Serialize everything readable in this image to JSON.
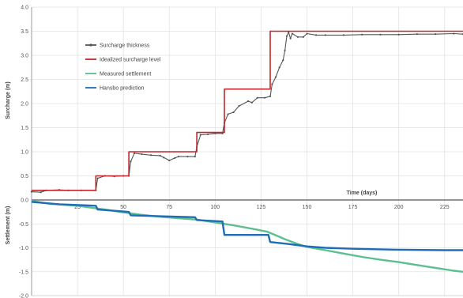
{
  "chart_data": {
    "type": "line",
    "grid": true,
    "legend_position": "top-left",
    "x": {
      "label": "Time (days)",
      "range": [
        0,
        235
      ],
      "ticks": [
        0,
        25,
        50,
        75,
        100,
        125,
        150,
        175,
        200,
        225
      ],
      "tick_labels": [
        "",
        "25",
        "50",
        "75",
        "100",
        "125",
        "150",
        "175",
        "200",
        "225"
      ]
    },
    "surcharge_axis": {
      "label": "Surcharge (m)",
      "range": [
        0,
        4
      ],
      "ticks": [
        0,
        0.5,
        1,
        1.5,
        2,
        2.5,
        3,
        3.5,
        4
      ],
      "tick_labels": [
        "0.0",
        "0.5",
        "1.0",
        "1.5",
        "2.0",
        "2.5",
        "3.0",
        "3.5",
        "4.0"
      ]
    },
    "settlement_axis": {
      "label": "Settlement (m)",
      "range": [
        -2,
        0
      ],
      "ticks": [
        0,
        -0.5,
        -1,
        -1.5,
        -2
      ],
      "tick_labels": [
        "0.0",
        "-0.5",
        "-1.0",
        "-1.5",
        "-2.0"
      ]
    },
    "series": [
      {
        "name": "Surcharge thickness",
        "color": "#555555",
        "axis": "surcharge",
        "marker": "dot",
        "points": [
          [
            0,
            0.17
          ],
          [
            5,
            0.16
          ],
          [
            8,
            0.2
          ],
          [
            15,
            0.21
          ],
          [
            20,
            0.2
          ],
          [
            27,
            0.2
          ],
          [
            35,
            0.2
          ],
          [
            36,
            0.45
          ],
          [
            40,
            0.5
          ],
          [
            45,
            0.49
          ],
          [
            50,
            0.5
          ],
          [
            53,
            0.5
          ],
          [
            54,
            0.8
          ],
          [
            56,
            0.97
          ],
          [
            60,
            0.95
          ],
          [
            65,
            0.93
          ],
          [
            70,
            0.92
          ],
          [
            72,
            0.88
          ],
          [
            75,
            0.82
          ],
          [
            78,
            0.87
          ],
          [
            80,
            0.9
          ],
          [
            85,
            0.9
          ],
          [
            89,
            0.9
          ],
          [
            90,
            1.1
          ],
          [
            92,
            1.35
          ],
          [
            96,
            1.36
          ],
          [
            100,
            1.38
          ],
          [
            104,
            1.38
          ],
          [
            105,
            1.6
          ],
          [
            107,
            1.78
          ],
          [
            110,
            1.82
          ],
          [
            113,
            1.95
          ],
          [
            118,
            2.05
          ],
          [
            120,
            2.02
          ],
          [
            123,
            2.12
          ],
          [
            127,
            2.12
          ],
          [
            130,
            2.15
          ],
          [
            131,
            2.4
          ],
          [
            133,
            2.55
          ],
          [
            135,
            2.75
          ],
          [
            137,
            2.9
          ],
          [
            138,
            3.1
          ],
          [
            139,
            3.4
          ],
          [
            140,
            3.48
          ],
          [
            141,
            3.35
          ],
          [
            142,
            3.45
          ],
          [
            145,
            3.38
          ],
          [
            148,
            3.38
          ],
          [
            150,
            3.45
          ],
          [
            155,
            3.42
          ],
          [
            160,
            3.42
          ],
          [
            170,
            3.42
          ],
          [
            180,
            3.43
          ],
          [
            190,
            3.43
          ],
          [
            200,
            3.43
          ],
          [
            210,
            3.44
          ],
          [
            220,
            3.44
          ],
          [
            230,
            3.45
          ],
          [
            235,
            3.44
          ]
        ]
      },
      {
        "name": "Idealized surcharge level",
        "color": "#c0272d",
        "axis": "surcharge",
        "marker": "none",
        "points": [
          [
            0,
            0.2
          ],
          [
            35,
            0.2
          ],
          [
            35,
            0.5
          ],
          [
            53,
            0.5
          ],
          [
            53,
            1.0
          ],
          [
            90,
            1.0
          ],
          [
            90,
            1.4
          ],
          [
            105,
            1.4
          ],
          [
            105,
            2.3
          ],
          [
            130,
            2.3
          ],
          [
            130,
            3.5
          ],
          [
            235,
            3.5
          ]
        ]
      },
      {
        "name": "Measured settlement",
        "color": "#5cbf8e",
        "axis": "settlement",
        "marker": "none",
        "points": [
          [
            0,
            -0.02
          ],
          [
            10,
            -0.08
          ],
          [
            25,
            -0.12
          ],
          [
            40,
            -0.2
          ],
          [
            50,
            -0.26
          ],
          [
            60,
            -0.31
          ],
          [
            70,
            -0.35
          ],
          [
            80,
            -0.38
          ],
          [
            90,
            -0.41
          ],
          [
            100,
            -0.47
          ],
          [
            110,
            -0.53
          ],
          [
            120,
            -0.6
          ],
          [
            128,
            -0.66
          ],
          [
            132,
            -0.72
          ],
          [
            138,
            -0.82
          ],
          [
            145,
            -0.92
          ],
          [
            150,
            -0.98
          ],
          [
            160,
            -1.05
          ],
          [
            170,
            -1.12
          ],
          [
            180,
            -1.19
          ],
          [
            190,
            -1.25
          ],
          [
            200,
            -1.3
          ],
          [
            210,
            -1.36
          ],
          [
            220,
            -1.42
          ],
          [
            230,
            -1.48
          ],
          [
            235,
            -1.5
          ]
        ]
      },
      {
        "name": "Hansbo prediction",
        "color": "#1f6db5",
        "axis": "settlement",
        "marker": "none",
        "points": [
          [
            0,
            -0.04
          ],
          [
            15,
            -0.09
          ],
          [
            35,
            -0.12
          ],
          [
            36,
            -0.2
          ],
          [
            53,
            -0.25
          ],
          [
            54,
            -0.32
          ],
          [
            70,
            -0.34
          ],
          [
            89,
            -0.36
          ],
          [
            90,
            -0.42
          ],
          [
            104,
            -0.45
          ],
          [
            105,
            -0.73
          ],
          [
            129,
            -0.73
          ],
          [
            130,
            -0.88
          ],
          [
            140,
            -0.92
          ],
          [
            150,
            -0.97
          ],
          [
            160,
            -1.0
          ],
          [
            175,
            -1.02
          ],
          [
            200,
            -1.04
          ],
          [
            225,
            -1.05
          ],
          [
            235,
            -1.05
          ]
        ]
      }
    ]
  }
}
